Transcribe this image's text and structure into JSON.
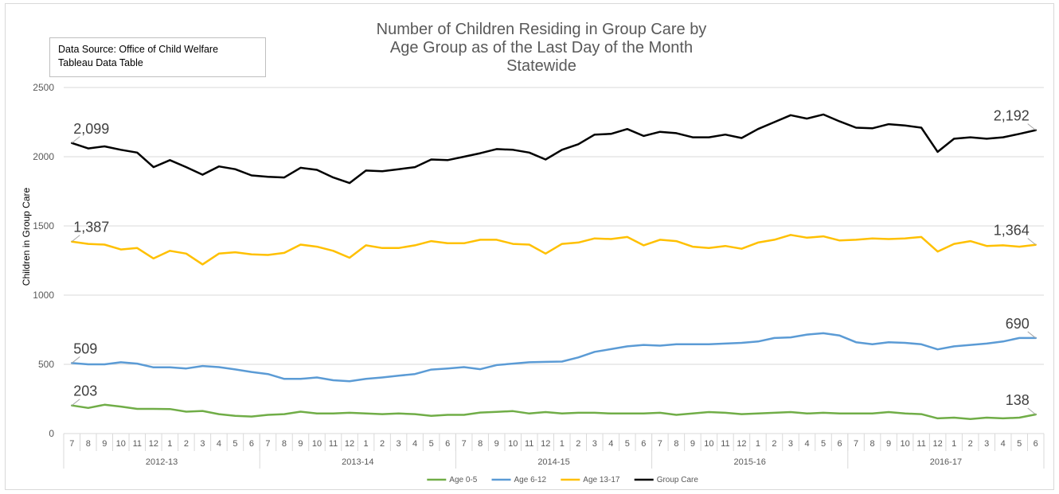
{
  "source": {
    "line1": "Data Source:  Office of Child Welfare",
    "line2": "Tableau Data Table"
  },
  "title_lines": [
    "Number of Children Residing in Group Care by",
    "Age Group as of the Last Day of the Month",
    "Statewide"
  ],
  "chart_data": {
    "type": "line",
    "title": "Number of Children Residing in Group Care by Age Group as of the Last Day of the Month Statewide",
    "ylabel": "Children in Group Care",
    "xlabel": "",
    "ylim": [
      0,
      2500
    ],
    "yticks": [
      0,
      500,
      1000,
      1500,
      2000,
      2500
    ],
    "grid": "horizontal",
    "legend_position": "bottom",
    "categories": [
      "7",
      "8",
      "9",
      "10",
      "11",
      "12",
      "1",
      "2",
      "3",
      "4",
      "5",
      "6",
      "7",
      "8",
      "9",
      "10",
      "11",
      "12",
      "1",
      "2",
      "3",
      "4",
      "5",
      "6",
      "7",
      "8",
      "9",
      "10",
      "11",
      "12",
      "1",
      "2",
      "3",
      "4",
      "5",
      "6",
      "7",
      "8",
      "9",
      "10",
      "11",
      "12",
      "1",
      "2",
      "3",
      "4",
      "5",
      "6",
      "7",
      "8",
      "9",
      "10",
      "11",
      "12",
      "1",
      "2",
      "3",
      "4",
      "5",
      "6"
    ],
    "groups": [
      {
        "label": "2012-13",
        "start": 0,
        "count": 12
      },
      {
        "label": "2013-14",
        "start": 12,
        "count": 12
      },
      {
        "label": "2014-15",
        "start": 24,
        "count": 12
      },
      {
        "label": "2015-16",
        "start": 36,
        "count": 12
      },
      {
        "label": "2016-17",
        "start": 48,
        "count": 12
      }
    ],
    "series": [
      {
        "name": "Age 0-5",
        "color": "#70ad47",
        "values": [
          203,
          185,
          208,
          195,
          178,
          178,
          177,
          158,
          163,
          140,
          128,
          123,
          135,
          140,
          158,
          145,
          145,
          150,
          145,
          140,
          145,
          140,
          128,
          135,
          135,
          152,
          157,
          162,
          145,
          155,
          145,
          150,
          150,
          145,
          145,
          145,
          150,
          135,
          145,
          155,
          150,
          140,
          145,
          150,
          155,
          145,
          150,
          145,
          145,
          145,
          155,
          145,
          140,
          110,
          115,
          105,
          115,
          110,
          115,
          138
        ],
        "start_label": "203",
        "end_label": "138"
      },
      {
        "name": "Age 6-12",
        "color": "#5b9bd5",
        "values": [
          509,
          500,
          500,
          515,
          505,
          478,
          478,
          470,
          488,
          480,
          463,
          445,
          430,
          395,
          395,
          405,
          385,
          378,
          395,
          405,
          418,
          430,
          462,
          470,
          480,
          465,
          495,
          505,
          515,
          518,
          520,
          550,
          590,
          610,
          630,
          640,
          635,
          645,
          645,
          645,
          650,
          655,
          665,
          690,
          695,
          715,
          725,
          708,
          660,
          645,
          660,
          655,
          645,
          608,
          630,
          640,
          650,
          665,
          690,
          690
        ],
        "start_label": "509",
        "end_label": "690"
      },
      {
        "name": "Age 13-17",
        "color": "#ffc000",
        "values": [
          1387,
          1370,
          1365,
          1330,
          1340,
          1265,
          1320,
          1300,
          1222,
          1300,
          1310,
          1295,
          1290,
          1305,
          1365,
          1350,
          1320,
          1270,
          1360,
          1340,
          1340,
          1360,
          1390,
          1375,
          1375,
          1400,
          1400,
          1370,
          1365,
          1300,
          1370,
          1380,
          1410,
          1405,
          1420,
          1360,
          1400,
          1390,
          1350,
          1340,
          1355,
          1335,
          1380,
          1400,
          1435,
          1415,
          1425,
          1395,
          1400,
          1410,
          1405,
          1410,
          1420,
          1315,
          1370,
          1390,
          1355,
          1360,
          1350,
          1364
        ],
        "start_label": "1,387",
        "end_label": "1,364"
      },
      {
        "name": "Group Care",
        "color": "#000000",
        "values": [
          2099,
          2060,
          2075,
          2050,
          2030,
          1925,
          1975,
          1925,
          1870,
          1930,
          1910,
          1865,
          1855,
          1850,
          1920,
          1905,
          1850,
          1810,
          1900,
          1895,
          1910,
          1925,
          1980,
          1975,
          2000,
          2025,
          2055,
          2050,
          2030,
          1980,
          2050,
          2090,
          2160,
          2165,
          2200,
          2150,
          2180,
          2170,
          2140,
          2140,
          2160,
          2135,
          2200,
          2250,
          2300,
          2275,
          2305,
          2255,
          2210,
          2205,
          2235,
          2225,
          2210,
          2035,
          2130,
          2140,
          2130,
          2140,
          2165,
          2192
        ],
        "start_label": "2,099",
        "end_label": "2,192"
      }
    ]
  }
}
